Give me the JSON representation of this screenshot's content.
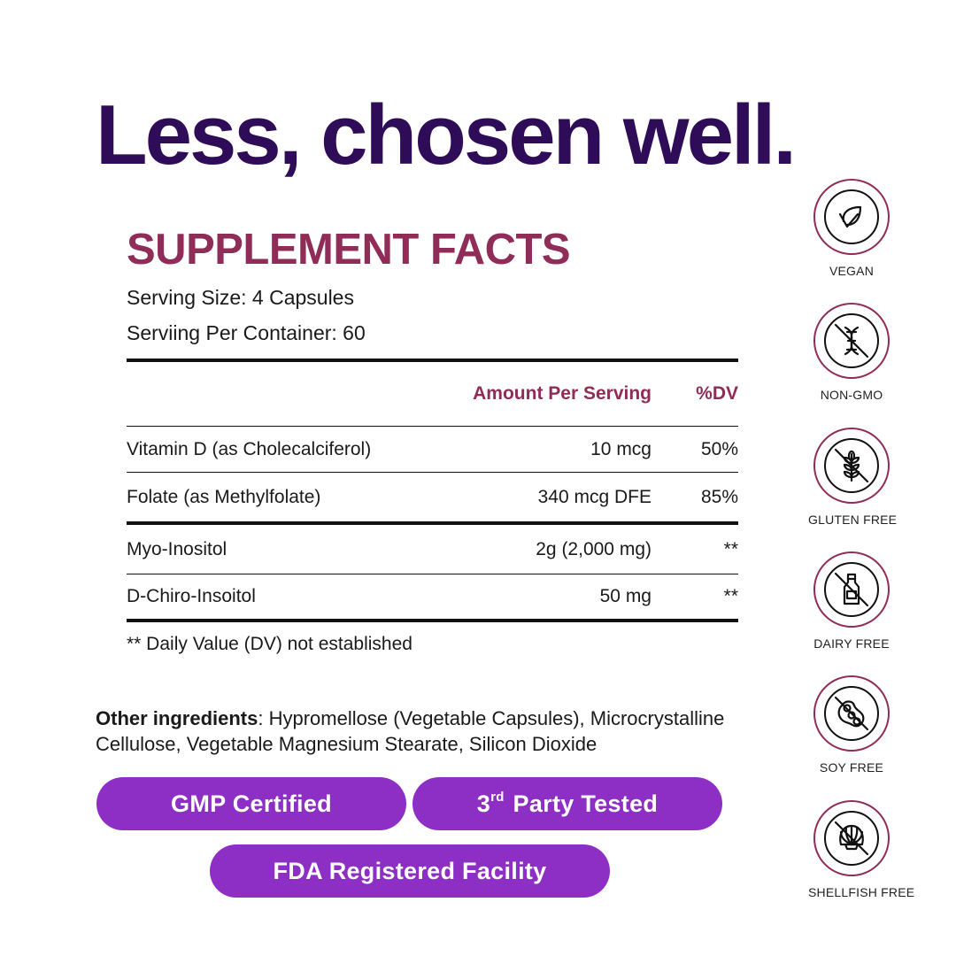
{
  "headline": "Less, chosen well.",
  "facts": {
    "title": "SUPPLEMENT FACTS",
    "serving_size": "Serving Size: 4 Capsules",
    "servings_per_container": "Serviing Per Container: 60",
    "col_amount": "Amount Per Serving",
    "col_dv": "%DV",
    "rows": [
      {
        "name": "Vitamin D (as Cholecalciferol)",
        "amount": "10 mcg",
        "dv": "50%"
      },
      {
        "name": "Folate (as Methylfolate)",
        "amount": "340 mcg DFE",
        "dv": "85%"
      },
      {
        "name": "Myo-Inositol",
        "amount": "2g (2,000 mg)",
        "dv": "**"
      },
      {
        "name": "D-Chiro-Insoitol",
        "amount": "50 mg",
        "dv": "**"
      }
    ],
    "footnote": "** Daily Value (DV) not established"
  },
  "ingredients": {
    "label": "Other ingredients",
    "text": ": Hypromellose (Vegetable Capsules), Microcrystalline Cellulose, Vegetable Magnesium Stearate, Silicon Dioxide"
  },
  "pills": {
    "gmp": "GMP Certified",
    "third_num": "3",
    "third_sup": "rd",
    "third_rest": " Party Tested",
    "fda": "FDA Registered Facility"
  },
  "badges": [
    {
      "label": "VEGAN",
      "icon": "leaf-icon"
    },
    {
      "label": "NON-GMO",
      "icon": "dna-icon"
    },
    {
      "label": "GLUTEN FREE",
      "icon": "wheat-icon"
    },
    {
      "label": "DAIRY FREE",
      "icon": "milk-bottle-icon"
    },
    {
      "label": "SOY FREE",
      "icon": "soybean-icon"
    },
    {
      "label": "SHELLFISH FREE",
      "icon": "shell-icon"
    }
  ],
  "colors": {
    "headline": "#2e0c57",
    "accent": "#8f2c58",
    "pill": "#8d2ec4"
  }
}
